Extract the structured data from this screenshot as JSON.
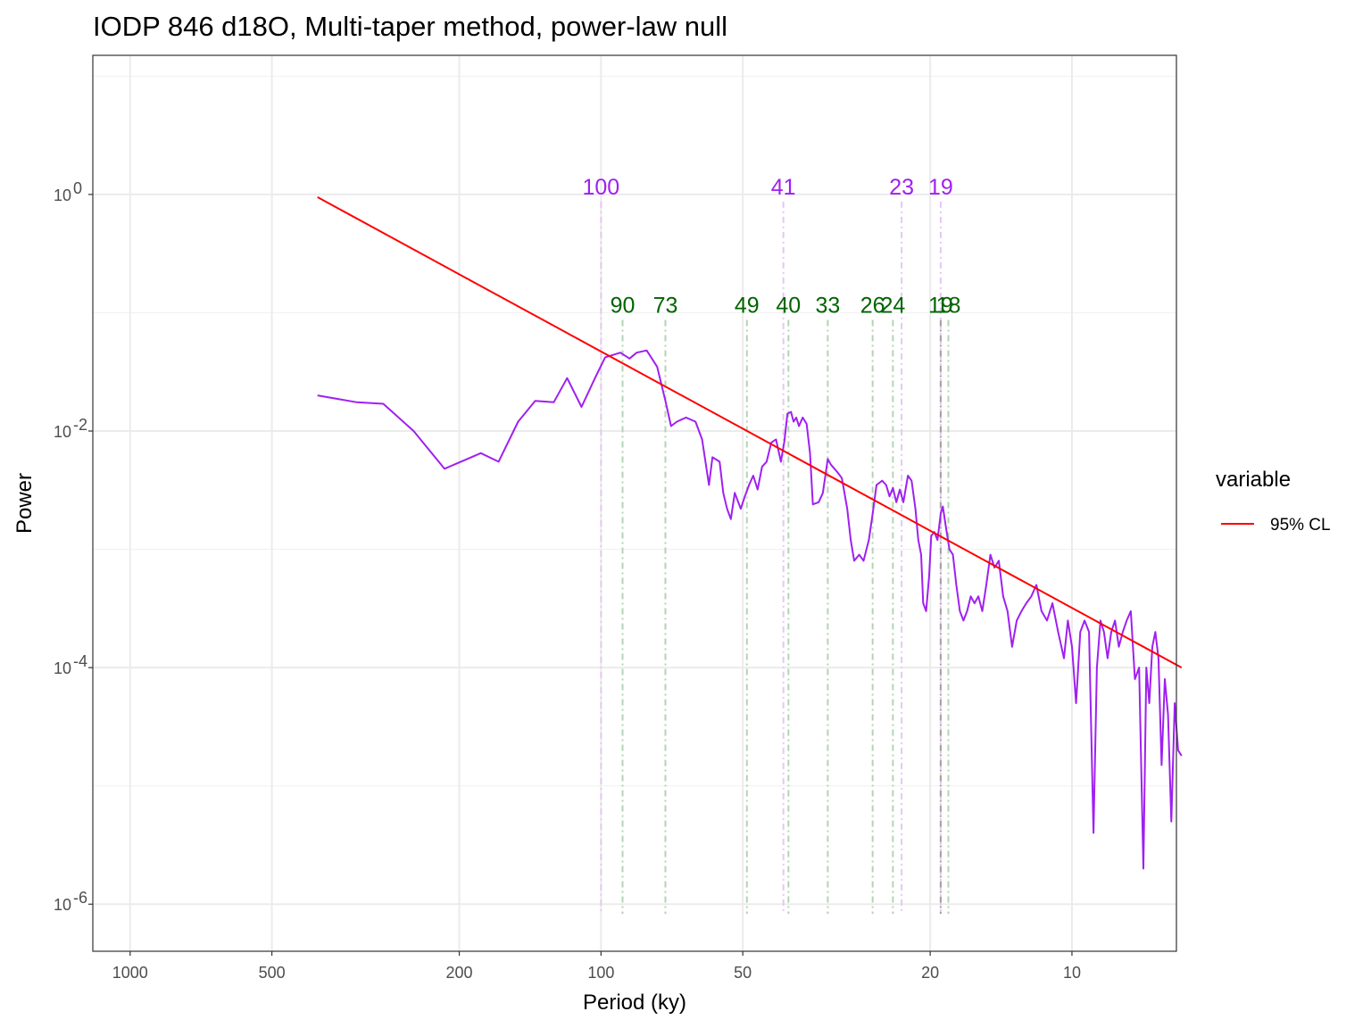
{
  "chart_data": {
    "type": "line",
    "title": "IODP 846 d18O, Multi-taper method, power-law null",
    "xlabel": "Period (ky)",
    "ylabel": "Power",
    "x_scale": "log-reversed",
    "y_scale": "log",
    "xlim": [
      1200,
      6
    ],
    "ylim": [
      4e-07,
      15
    ],
    "x_ticks": [
      {
        "value": 1000,
        "label": "1000"
      },
      {
        "value": 500,
        "label": "500"
      },
      {
        "value": 200,
        "label": "200"
      },
      {
        "value": 100,
        "label": "100"
      },
      {
        "value": 50,
        "label": "50"
      },
      {
        "value": 20,
        "label": "20"
      },
      {
        "value": 10,
        "label": "10"
      }
    ],
    "y_ticks": [
      {
        "value": 1,
        "base": "10",
        "exp": "0"
      },
      {
        "value": 0.01,
        "base": "10",
        "exp": "-2"
      },
      {
        "value": 0.0001,
        "base": "10",
        "exp": "-4"
      },
      {
        "value": 1e-06,
        "base": "10",
        "exp": "-6"
      }
    ],
    "grid": true,
    "legend": {
      "title": "variable",
      "placement": "right",
      "entries": [
        {
          "name": "95% CL",
          "color": "#ff0000"
        }
      ]
    },
    "series": [
      {
        "name": "95% CL",
        "color": "#ff0000",
        "points": [
          [
            400,
            0.95
          ],
          [
            5.85,
            0.0001
          ]
        ]
      },
      {
        "color": "#a020f0",
        "points": [
          [
            400,
            0.02
          ],
          [
            330,
            0.0175
          ],
          [
            290,
            0.017
          ],
          [
            250,
            0.01
          ],
          [
            215,
            0.0048
          ],
          [
            180,
            0.0065
          ],
          [
            165,
            0.0055
          ],
          [
            150,
            0.012
          ],
          [
            138,
            0.018
          ],
          [
            126,
            0.0175
          ],
          [
            118,
            0.028
          ],
          [
            110,
            0.016
          ],
          [
            103,
            0.028
          ],
          [
            98,
            0.042
          ],
          [
            91,
            0.046
          ],
          [
            87,
            0.041
          ],
          [
            84,
            0.046
          ],
          [
            80,
            0.048
          ],
          [
            76,
            0.035
          ],
          [
            73,
            0.018
          ],
          [
            71,
            0.011
          ],
          [
            69,
            0.012
          ],
          [
            66,
            0.013
          ],
          [
            63,
            0.012
          ],
          [
            61,
            0.0085
          ],
          [
            59,
            0.0035
          ],
          [
            58,
            0.006
          ],
          [
            56,
            0.0055
          ],
          [
            55,
            0.003
          ],
          [
            54,
            0.0022
          ],
          [
            53,
            0.0018
          ],
          [
            52,
            0.003
          ],
          [
            50.5,
            0.0022
          ],
          [
            49.5,
            0.0028
          ],
          [
            48.5,
            0.0035
          ],
          [
            47.5,
            0.0042
          ],
          [
            46.5,
            0.0032
          ],
          [
            45.5,
            0.005
          ],
          [
            44.5,
            0.0055
          ],
          [
            43.5,
            0.008
          ],
          [
            42.5,
            0.0085
          ],
          [
            41.5,
            0.0055
          ],
          [
            40.8,
            0.0082
          ],
          [
            40.2,
            0.014
          ],
          [
            39.5,
            0.0145
          ],
          [
            39,
            0.012
          ],
          [
            38.5,
            0.013
          ],
          [
            38,
            0.011
          ],
          [
            37.3,
            0.013
          ],
          [
            36.6,
            0.0115
          ],
          [
            36,
            0.0065
          ],
          [
            35.5,
            0.0024
          ],
          [
            34.5,
            0.0025
          ],
          [
            33.8,
            0.003
          ],
          [
            33,
            0.0058
          ],
          [
            32.5,
            0.0052
          ],
          [
            31.5,
            0.0045
          ],
          [
            30.8,
            0.004
          ],
          [
            30,
            0.0022
          ],
          [
            29.5,
            0.0012
          ],
          [
            29,
            0.0008
          ],
          [
            28.3,
            0.0009
          ],
          [
            27.7,
            0.0008
          ],
          [
            27,
            0.0012
          ],
          [
            26.5,
            0.002
          ],
          [
            26,
            0.0035
          ],
          [
            25.3,
            0.0038
          ],
          [
            24.8,
            0.0035
          ],
          [
            24.4,
            0.0028
          ],
          [
            24,
            0.0033
          ],
          [
            23.6,
            0.0025
          ],
          [
            23.2,
            0.0032
          ],
          [
            22.8,
            0.0025
          ],
          [
            22.3,
            0.0042
          ],
          [
            21.9,
            0.0038
          ],
          [
            21.5,
            0.0022
          ],
          [
            21.2,
            0.0012
          ],
          [
            20.9,
            0.0009
          ],
          [
            20.7,
            0.00035
          ],
          [
            20.4,
            0.0003
          ],
          [
            20.1,
            0.0006
          ],
          [
            19.9,
            0.0013
          ],
          [
            19.6,
            0.0014
          ],
          [
            19.3,
            0.0012
          ],
          [
            19,
            0.002
          ],
          [
            18.8,
            0.0023
          ],
          [
            18.5,
            0.0015
          ],
          [
            18.2,
            0.001
          ],
          [
            17.9,
            0.0009
          ],
          [
            17.6,
            0.0005
          ],
          [
            17.3,
            0.0003
          ],
          [
            17.0,
            0.00025
          ],
          [
            16.7,
            0.0003
          ],
          [
            16.4,
            0.0004
          ],
          [
            16.1,
            0.00035
          ],
          [
            15.8,
            0.0004
          ],
          [
            15.5,
            0.0003
          ],
          [
            15.2,
            0.0005
          ],
          [
            14.9,
            0.0009
          ],
          [
            14.6,
            0.0007
          ],
          [
            14.3,
            0.0008
          ],
          [
            14.0,
            0.0004
          ],
          [
            13.7,
            0.0003
          ],
          [
            13.4,
            0.00015
          ],
          [
            13.1,
            0.00025
          ],
          [
            12.8,
            0.0003
          ],
          [
            12.5,
            0.00035
          ],
          [
            12.2,
            0.0004
          ],
          [
            11.9,
            0.0005
          ],
          [
            11.6,
            0.0003
          ],
          [
            11.3,
            0.00025
          ],
          [
            11.0,
            0.00035
          ],
          [
            10.7,
            0.0002
          ],
          [
            10.4,
            0.00012
          ],
          [
            10.2,
            0.00025
          ],
          [
            10.0,
            0.00015
          ],
          [
            9.8,
            5e-05
          ],
          [
            9.6,
            0.0002
          ],
          [
            9.4,
            0.00025
          ],
          [
            9.2,
            0.0002
          ],
          [
            9.0,
            4e-06
          ],
          [
            8.85,
            0.0001
          ],
          [
            8.7,
            0.00025
          ],
          [
            8.55,
            0.0002
          ],
          [
            8.4,
            0.00012
          ],
          [
            8.25,
            0.0002
          ],
          [
            8.1,
            0.00025
          ],
          [
            7.95,
            0.00015
          ],
          [
            7.8,
            0.0002
          ],
          [
            7.65,
            0.00025
          ],
          [
            7.5,
            0.0003
          ],
          [
            7.35,
            8e-05
          ],
          [
            7.2,
            0.0001
          ],
          [
            7.05,
            2e-06
          ],
          [
            6.95,
            0.0001
          ],
          [
            6.85,
            5e-05
          ],
          [
            6.75,
            0.00015
          ],
          [
            6.65,
            0.0002
          ],
          [
            6.55,
            0.00012
          ],
          [
            6.45,
            1.5e-05
          ],
          [
            6.35,
            8e-05
          ],
          [
            6.25,
            4e-05
          ],
          [
            6.15,
            5e-06
          ],
          [
            6.05,
            5e-05
          ],
          [
            5.95,
            2e-05
          ],
          [
            5.85,
            1.8e-05
          ]
        ]
      }
    ],
    "reference_lines": [
      {
        "period": 100,
        "label": "100",
        "color": "#a020f0",
        "line_color": "#e6c6f5",
        "label_power": 1.0
      },
      {
        "period": 41,
        "label": "41",
        "color": "#a020f0",
        "line_color": "#e6c6f5",
        "label_power": 1.0
      },
      {
        "period": 23,
        "label": "23",
        "color": "#a020f0",
        "line_color": "#e6c6f5",
        "label_power": 1.0
      },
      {
        "period": 19,
        "label": "19",
        "color": "#a020f0",
        "line_color": "#e6c6f5",
        "label_power": 1.0
      },
      {
        "period": 90,
        "label": "90",
        "color": "#006400",
        "line_color": "#b3d4b3",
        "label_power": 0.1
      },
      {
        "period": 73,
        "label": "73",
        "color": "#006400",
        "line_color": "#b3d4b3",
        "label_power": 0.1
      },
      {
        "period": 49,
        "label": "49",
        "color": "#006400",
        "line_color": "#b3d4b3",
        "label_power": 0.1
      },
      {
        "period": 40,
        "label": "40",
        "color": "#006400",
        "line_color": "#b3d4b3",
        "label_power": 0.1
      },
      {
        "period": 33,
        "label": "33",
        "color": "#006400",
        "line_color": "#b3d4b3",
        "label_power": 0.1
      },
      {
        "period": 26.5,
        "label": "26",
        "color": "#006400",
        "line_color": "#b3d4b3",
        "label_power": 0.1
      },
      {
        "period": 24,
        "label": "24",
        "color": "#006400",
        "line_color": "#b3d4b3",
        "label_power": 0.1
      },
      {
        "period": 19,
        "label": "19",
        "color": "#006400",
        "line_color": "#a0a0a0",
        "label_power": 0.1
      },
      {
        "period": 18.3,
        "label": "18",
        "color": "#006400",
        "line_color": "#b3d4b3",
        "label_power": 0.1
      }
    ]
  }
}
